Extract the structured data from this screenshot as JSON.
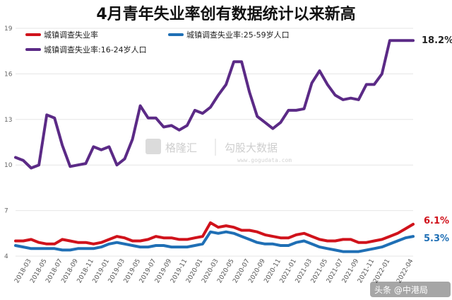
{
  "chart_data": {
    "type": "line",
    "title": "4月青年失业率创有数据统计以来新高",
    "xlabel": "",
    "ylabel": "",
    "ylim": [
      4,
      19
    ],
    "yticks": [
      "4",
      "7",
      "10",
      "13",
      "16",
      "19"
    ],
    "grid": "horizontal",
    "legend_position": "top-left",
    "x": [
      "2018-01",
      "2018-02",
      "2018-03",
      "2018-04",
      "2018-05",
      "2018-06",
      "2018-07",
      "2018-08",
      "2018-09",
      "2018-10",
      "2018-11",
      "2018-12",
      "2019-01",
      "2019-02",
      "2019-03",
      "2019-04",
      "2019-05",
      "2019-06",
      "2019-07",
      "2019-08",
      "2019-09",
      "2019-10",
      "2019-11",
      "2019-12",
      "2020-01",
      "2020-02",
      "2020-03",
      "2020-04",
      "2020-05",
      "2020-06",
      "2020-07",
      "2020-08",
      "2020-09",
      "2020-10",
      "2020-11",
      "2020-12",
      "2021-01",
      "2021-02",
      "2021-03",
      "2021-04",
      "2021-05",
      "2021-06",
      "2021-07",
      "2021-08",
      "2021-09",
      "2021-10",
      "2021-11",
      "2021-12",
      "2022-01",
      "2022-02",
      "2022-03",
      "2022-04"
    ],
    "xtick_labels": [
      "2018-03",
      "2018-05",
      "2018-07",
      "2018-09",
      "2018-11",
      "2019-01",
      "2019-03",
      "2019-05",
      "2019-07",
      "2019-09",
      "2019-11",
      "2020-01",
      "2020-03",
      "2020-05",
      "2020-07",
      "2020-09",
      "2020-11",
      "2021-01",
      "2021-03",
      "2021-05",
      "2021-07",
      "2021-09",
      "2021-11",
      "2022-01",
      "2022-04"
    ],
    "series": [
      {
        "name": "城镇调查失业率",
        "color": "#d0121b",
        "end_label": "6.1%",
        "values": [
          5.0,
          5.0,
          5.1,
          4.9,
          4.8,
          4.8,
          5.1,
          5.0,
          4.9,
          4.9,
          4.8,
          4.9,
          5.1,
          5.3,
          5.2,
          5.0,
          5.0,
          5.1,
          5.3,
          5.2,
          5.2,
          5.1,
          5.1,
          5.2,
          5.3,
          6.2,
          5.9,
          6.0,
          5.9,
          5.7,
          5.7,
          5.6,
          5.4,
          5.3,
          5.2,
          5.2,
          5.4,
          5.5,
          5.3,
          5.1,
          5.0,
          5.0,
          5.1,
          5.1,
          4.9,
          4.9,
          5.0,
          5.1,
          5.3,
          5.5,
          5.8,
          6.1
        ]
      },
      {
        "name": "城镇调查失业率:25-59岁人口",
        "color": "#1f6fb5",
        "end_label": "5.3%",
        "values": [
          4.7,
          4.6,
          4.5,
          4.5,
          4.5,
          4.5,
          4.4,
          4.4,
          4.5,
          4.5,
          4.5,
          4.6,
          4.8,
          4.9,
          4.8,
          4.7,
          4.6,
          4.6,
          4.7,
          4.7,
          4.6,
          4.6,
          4.6,
          4.7,
          4.8,
          5.6,
          5.5,
          5.6,
          5.5,
          5.3,
          5.1,
          4.9,
          4.8,
          4.8,
          4.7,
          4.7,
          4.9,
          5.0,
          4.8,
          4.6,
          4.5,
          4.4,
          4.3,
          4.3,
          4.3,
          4.4,
          4.5,
          4.6,
          4.8,
          5.0,
          5.2,
          5.3
        ]
      },
      {
        "name": "城镇调查失业率:16-24岁人口",
        "color": "#5b2a86",
        "end_label": "18.2%",
        "values": [
          10.5,
          10.3,
          9.8,
          10.0,
          13.3,
          13.1,
          11.3,
          9.9,
          10.0,
          10.1,
          11.2,
          11.0,
          11.2,
          10.0,
          10.4,
          11.7,
          13.9,
          13.1,
          13.1,
          12.5,
          12.6,
          12.3,
          12.6,
          13.6,
          13.4,
          13.8,
          14.6,
          15.3,
          16.8,
          16.8,
          14.8,
          13.2,
          12.8,
          12.4,
          12.8,
          13.6,
          13.6,
          13.7,
          15.4,
          16.2,
          15.3,
          14.6,
          14.3,
          14.4,
          14.3,
          15.3,
          15.3,
          16.0,
          18.2,
          18.2,
          18.2,
          18.2
        ]
      }
    ]
  },
  "watermark": {
    "brand_cn": "格隆汇",
    "brand_partner": "勾股大数据",
    "site": "www.gogudata.com"
  },
  "source_badge": "头条 @中港局"
}
